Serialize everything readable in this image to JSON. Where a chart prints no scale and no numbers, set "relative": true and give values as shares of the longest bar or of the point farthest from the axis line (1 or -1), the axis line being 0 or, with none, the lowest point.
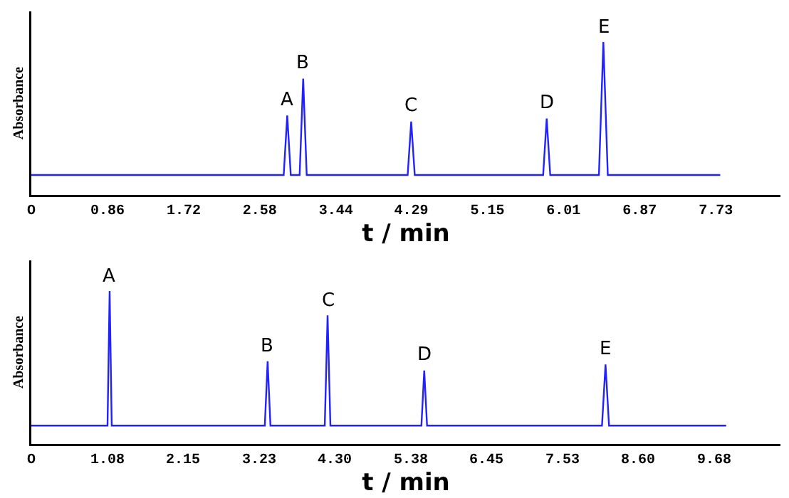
{
  "chart_data": [
    {
      "type": "line",
      "xlabel": "t / min",
      "ylabel": "Absorbance",
      "relative": true,
      "marker": "none",
      "grid": false,
      "x": [
        0,
        2.85,
        2.89,
        2.93,
        3.03,
        3.07,
        3.11,
        4.25,
        4.29,
        4.33,
        5.78,
        5.82,
        5.86,
        6.41,
        6.46,
        6.51,
        7.78
      ],
      "series": [
        {
          "color": "#2222ff",
          "values": [
            0.13,
            0.13,
            0.52,
            0.13,
            0.13,
            0.76,
            0.13,
            0.13,
            0.48,
            0.13,
            0.13,
            0.5,
            0.13,
            0.13,
            1,
            0.13,
            0.13
          ]
        }
      ],
      "xlim": [
        0,
        8.46
      ],
      "xticks": [
        {
          "value": 0,
          "label": "O"
        },
        0.86,
        1.72,
        2.58,
        3.44,
        4.29,
        5.15,
        6.01,
        6.87,
        7.73
      ],
      "annotations": [
        {
          "text": "A",
          "x": 2.89,
          "y": 0.52
        },
        {
          "text": "B",
          "x": 3.07,
          "y": 0.76
        },
        {
          "text": "C",
          "x": 4.29,
          "y": 0.48
        },
        {
          "text": "D",
          "x": 5.82,
          "y": 0.5
        },
        {
          "text": "E",
          "x": 6.46,
          "y": 1
        }
      ]
    },
    {
      "type": "line",
      "xlabel": "t / min",
      "ylabel": "Absorbance",
      "relative": true,
      "marker": "none",
      "grid": false,
      "x": [
        0,
        1.08,
        1.11,
        1.14,
        3.31,
        3.35,
        3.39,
        4.16,
        4.2,
        4.24,
        5.53,
        5.57,
        5.61,
        8.09,
        8.14,
        8.19,
        9.85
      ],
      "series": [
        {
          "color": "#2222ff",
          "values": [
            0.12,
            0.12,
            1,
            0.12,
            0.12,
            0.54,
            0.12,
            0.12,
            0.84,
            0.12,
            0.12,
            0.48,
            0.12,
            0.12,
            0.52,
            0.12,
            0.12
          ]
        }
      ],
      "xlim": [
        0,
        10.62
      ],
      "xticks": [
        {
          "value": 0,
          "label": "O"
        },
        1.08,
        2.15,
        3.23,
        {
          "value": 4.3,
          "label": "4.30"
        },
        5.38,
        6.45,
        7.53,
        {
          "value": 8.6,
          "label": "8.60"
        },
        9.68
      ],
      "annotations": [
        {
          "text": "A",
          "x": 1.11,
          "y": 1
        },
        {
          "text": "B",
          "x": 3.35,
          "y": 0.54
        },
        {
          "text": "C",
          "x": 4.2,
          "y": 0.84
        },
        {
          "text": "D",
          "x": 5.57,
          "y": 0.48
        },
        {
          "text": "E",
          "x": 8.14,
          "y": 0.52
        }
      ]
    }
  ]
}
